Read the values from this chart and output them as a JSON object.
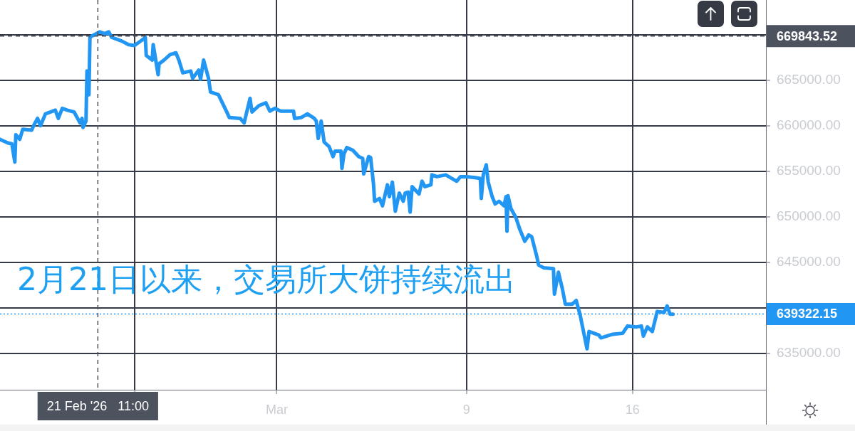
{
  "chart_data": {
    "type": "line",
    "color": "#2196f3",
    "x": [
      "2026-02-17T08:00",
      "2026-02-17T16:00",
      "2026-02-17T20:00",
      "2026-02-17T23:00",
      "2026-02-18T00:00",
      "2026-02-18T04:00",
      "2026-02-18T07:00",
      "2026-02-18T16:00",
      "2026-02-18T18:00",
      "2026-02-18T22:00",
      "2026-02-19T01:00",
      "2026-02-19T06:00",
      "2026-02-19T16:00",
      "2026-02-19T19:00",
      "2026-02-19T23:00",
      "2026-02-20T04:00",
      "2026-02-20T11:00",
      "2026-02-20T17:00",
      "2026-02-20T19:00",
      "2026-02-20T20:00",
      "2026-02-20T23:00",
      "2026-02-21T00:00",
      "2026-02-21T02:00",
      "2026-02-21T03:00",
      "2026-02-21T06:00",
      "2026-02-21T13:00",
      "2026-02-21T18:00",
      "2026-02-21T22:00",
      "2026-02-22T01:00",
      "2026-02-22T11:00",
      "2026-02-22T18:00",
      "2026-02-23T00:00",
      "2026-02-23T09:00",
      "2026-02-23T11:00",
      "2026-02-23T12:00",
      "2026-02-23T18:00",
      "2026-02-23T19:00",
      "2026-02-24T00:00",
      "2026-02-24T01:00",
      "2026-02-24T06:00",
      "2026-02-24T12:00",
      "2026-02-24T18:00",
      "2026-02-24T21:00",
      "2026-02-25T01:00",
      "2026-02-25T09:00",
      "2026-02-25T11:00",
      "2026-02-25T17:00",
      "2026-02-25T19:00",
      "2026-02-25T22:00",
      "2026-02-26T03:00",
      "2026-02-26T05:00",
      "2026-02-26T13:00",
      "2026-02-26T21:00",
      "2026-02-27T00:00",
      "2026-02-27T11:00",
      "2026-02-27T15:00",
      "2026-02-27T21:00",
      "2026-02-27T23:00",
      "2026-02-28T06:00",
      "2026-02-28T13:00",
      "2026-02-28T17:00",
      "2026-02-28T22:00",
      "2026-03-01T04:00",
      "2026-03-01T17:00",
      "2026-03-01T18:00",
      "2026-03-02T01:00",
      "2026-03-02T07:00",
      "2026-03-02T14:00",
      "2026-03-02T16:00",
      "2026-03-02T18:00",
      "2026-03-02T21:00",
      "2026-03-03T00:00",
      "2026-03-03T05:00",
      "2026-03-03T09:00",
      "2026-03-03T11:00",
      "2026-03-03T17:00",
      "2026-03-03T18:00",
      "2026-03-03T20:00",
      "2026-03-03T23:00",
      "2026-03-04T05:00",
      "2026-03-04T11:00",
      "2026-03-04T15:00",
      "2026-03-04T16:00",
      "2026-03-04T21:00",
      "2026-03-04T23:00",
      "2026-03-05T02:00",
      "2026-03-05T03:00",
      "2026-03-05T08:00",
      "2026-03-05T11:00",
      "2026-03-05T16:00",
      "2026-03-05T18:00",
      "2026-03-05T21:00",
      "2026-03-06T00:00",
      "2026-03-06T04:00",
      "2026-03-06T08:00",
      "2026-03-06T10:00",
      "2026-03-06T13:00",
      "2026-03-06T15:00",
      "2026-03-06T17:00",
      "2026-03-07T00:00",
      "2026-03-07T03:00",
      "2026-03-07T06:00",
      "2026-03-07T12:00",
      "2026-03-07T13:00",
      "2026-03-07T18:00",
      "2026-03-08T03:00",
      "2026-03-08T14:00",
      "2026-03-08T18:00",
      "2026-03-09T00:00",
      "2026-03-09T09:00",
      "2026-03-09T14:00",
      "2026-03-09T15:00",
      "2026-03-09T17:00",
      "2026-03-09T20:00",
      "2026-03-09T22:00",
      "2026-03-10T02:00",
      "2026-03-10T05:00",
      "2026-03-10T09:00",
      "2026-03-10T14:00",
      "2026-03-10T16:00",
      "2026-03-10T17:00",
      "2026-03-10T18:00",
      "2026-03-10T21:00",
      "2026-03-11T02:00",
      "2026-03-11T06:00",
      "2026-03-11T11:00",
      "2026-03-11T15:00",
      "2026-03-11T18:00",
      "2026-03-11T23:00",
      "2026-03-12T01:00",
      "2026-03-12T06:00",
      "2026-03-12T16:00",
      "2026-03-12T17:00",
      "2026-03-12T21:00",
      "2026-03-13T01:00",
      "2026-03-13T04:00",
      "2026-03-13T11:00",
      "2026-03-13T15:00",
      "2026-03-13T19:00",
      "2026-03-13T22:00",
      "2026-03-14T02:00",
      "2026-03-14T04:00",
      "2026-03-14T14:00",
      "2026-03-14T16:00",
      "2026-03-15T04:00",
      "2026-03-15T14:00",
      "2026-03-15T19:00",
      "2026-03-16T04:00",
      "2026-03-16T09:00",
      "2026-03-16T11:00",
      "2026-03-16T15:00",
      "2026-03-16T20:00",
      "2026-03-17T01:00",
      "2026-03-17T08:00",
      "2026-03-17T11:00",
      "2026-03-17T14:00",
      "2026-03-17T17:00"
    ],
    "values": [
      658500,
      658100,
      658000,
      656000,
      659000,
      658500,
      659600,
      659500,
      660000,
      660800,
      660000,
      661300,
      661700,
      660800,
      661900,
      661700,
      661500,
      660300,
      660800,
      659800,
      660500,
      666000,
      663400,
      669700,
      669900,
      670300,
      670100,
      670300,
      669700,
      669300,
      668900,
      668800,
      669500,
      669700,
      667700,
      667200,
      668900,
      665600,
      666800,
      667200,
      667800,
      668000,
      667200,
      665800,
      666000,
      665200,
      666100,
      665100,
      667200,
      665200,
      663700,
      663400,
      661600,
      660900,
      660800,
      660300,
      663000,
      661500,
      662200,
      662500,
      661600,
      661900,
      661600,
      661600,
      660800,
      660900,
      661300,
      660800,
      660500,
      658600,
      660500,
      658200,
      657700,
      656600,
      657200,
      657200,
      655300,
      656900,
      657600,
      657300,
      656600,
      656400,
      654700,
      656600,
      656500,
      653500,
      651700,
      652000,
      651200,
      653500,
      652200,
      653800,
      650600,
      652600,
      651700,
      652600,
      652700,
      650500,
      653300,
      652500,
      653900,
      653300,
      653500,
      654600,
      654400,
      654600,
      653900,
      654400,
      654400,
      654300,
      654200,
      652000,
      654600,
      655700,
      653800,
      652200,
      651400,
      651700,
      651200,
      652200,
      648400,
      652300,
      650900,
      649900,
      648600,
      647300,
      648000,
      647800,
      645700,
      644700,
      644400,
      644300,
      641500,
      643900,
      642100,
      640400,
      640400,
      640800,
      639200,
      637600,
      635500,
      637400,
      637000,
      636700,
      637100,
      637200,
      638000,
      637900,
      638000,
      636900,
      637900,
      637400,
      639600,
      639500,
      640200,
      639300,
      639300
    ],
    "xlim": [
      "2026-02-17T08:00",
      "2026-03-21T15:00"
    ],
    "xticks": [
      {
        "value": "2026-02-23",
        "label": null
      },
      {
        "value": "2026-03-01",
        "label": "Mar"
      },
      {
        "value": "2026-03-09",
        "label": "9"
      },
      {
        "value": "2026-03-16",
        "label": "16"
      }
    ],
    "ylim": [
      631000,
      673800
    ],
    "yticks": [
      {
        "value": 635000,
        "label": "635000.00"
      },
      {
        "value": 640000,
        "label": null
      },
      {
        "value": 645000,
        "label": "645000.00"
      },
      {
        "value": 650000,
        "label": "650000.00"
      },
      {
        "value": 655000,
        "label": "655000.00"
      },
      {
        "value": 660000,
        "label": "660000.00"
      },
      {
        "value": 665000,
        "label": "665000.00"
      },
      {
        "value": 670000,
        "label": null
      }
    ],
    "grid": true,
    "ref_lines": [
      {
        "axis": "x",
        "value": "2026-02-21T11:00",
        "label": "21 Feb '26   11:00",
        "color": "#4c525e",
        "line_style": "dashed"
      },
      {
        "axis": "y",
        "value": 669843.52,
        "label": "669843.52",
        "color": "#4c525e",
        "line_style": "dashed"
      },
      {
        "axis": "y",
        "value": 639322.15,
        "label": "639322.15",
        "color": "#2196f3",
        "line_style": "dotted"
      }
    ],
    "annotations": [
      "2月21日以来，交易所大饼持续流出"
    ]
  }
}
